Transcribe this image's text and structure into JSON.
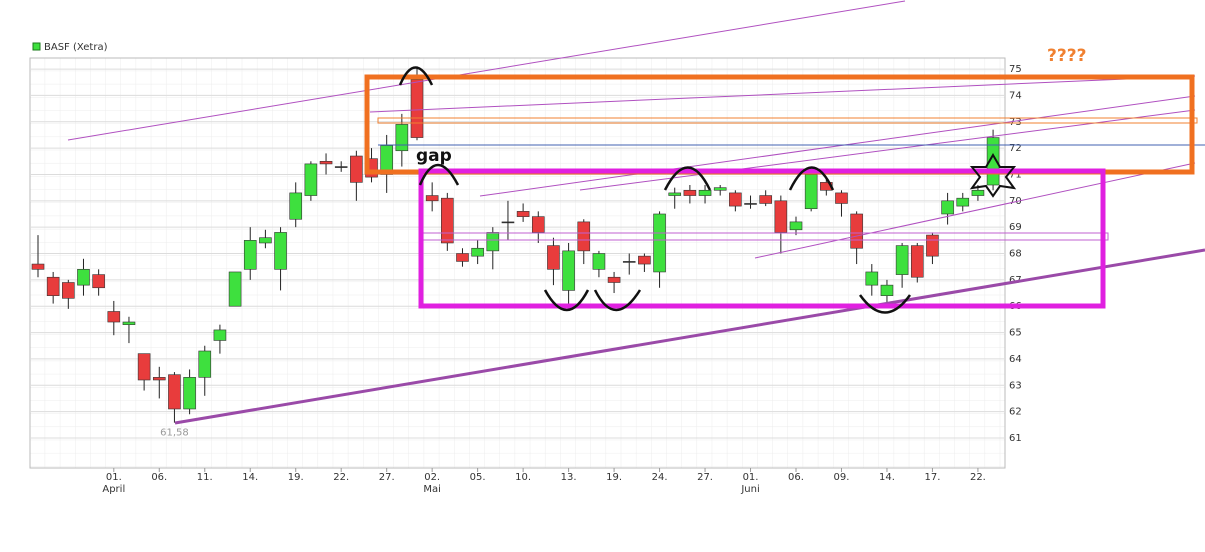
{
  "chart_data": {
    "type": "candlestick",
    "title": "BASF (Xetra)",
    "categories": [
      null,
      null,
      null,
      null,
      null,
      "01.",
      null,
      null,
      "06.",
      null,
      null,
      "11.",
      null,
      null,
      "14.",
      null,
      null,
      "19.",
      null,
      null,
      "22.",
      null,
      null,
      "27.",
      null,
      null,
      "02.",
      null,
      null,
      "05.",
      null,
      null,
      "10.",
      null,
      null,
      "13.",
      null,
      null,
      "19.",
      null,
      null,
      "24.",
      null,
      null,
      "27.",
      null,
      null,
      "01.",
      null,
      null,
      "06.",
      null,
      null,
      "09.",
      null,
      null,
      "14.",
      null,
      null,
      "17.",
      null,
      null,
      "22.",
      null
    ],
    "months": [
      "April",
      "Mai",
      "Juni"
    ],
    "series": [
      {
        "name": "BASF (Xetra)",
        "open": [
          67.6,
          67.1,
          66.9,
          66.8,
          67.2,
          65.8,
          65.3,
          64.2,
          63.3,
          63.4,
          62.1,
          63.3,
          64.7,
          66.0,
          67.4,
          68.4,
          67.4,
          69.3,
          70.2,
          71.5,
          71.3,
          71.7,
          71.6,
          71.0,
          71.9,
          74.6,
          70.2,
          70.1,
          68.0,
          67.9,
          68.1,
          69.2,
          69.6,
          69.4,
          68.3,
          66.6,
          69.2,
          67.4,
          67.1,
          67.7,
          67.9,
          67.3,
          70.2,
          70.4,
          70.2,
          70.4,
          70.3,
          69.9,
          70.2,
          70.0,
          68.9,
          69.7,
          70.7,
          70.3,
          69.5,
          66.8,
          66.4,
          67.2,
          68.3,
          68.7,
          69.5,
          69.8,
          70.2,
          70.6
        ],
        "high": [
          68.7,
          67.3,
          67.0,
          67.8,
          67.4,
          66.2,
          65.6,
          64.2,
          63.7,
          63.5,
          63.6,
          64.5,
          65.3,
          67.3,
          69.0,
          68.9,
          69.0,
          70.7,
          71.5,
          71.8,
          71.5,
          71.9,
          72.0,
          72.5,
          73.3,
          75.1,
          70.7,
          70.3,
          68.2,
          68.5,
          69.0,
          70.0,
          69.9,
          69.6,
          68.6,
          68.4,
          69.3,
          68.1,
          67.3,
          68.0,
          68.0,
          69.6,
          70.5,
          70.6,
          70.6,
          70.6,
          70.4,
          70.2,
          70.4,
          70.2,
          69.4,
          71.1,
          70.9,
          70.4,
          69.6,
          67.6,
          67.0,
          68.4,
          68.4,
          68.8,
          70.3,
          70.3,
          70.6,
          72.7
        ],
        "low": [
          67.1,
          66.1,
          65.9,
          66.4,
          66.4,
          64.9,
          64.6,
          62.8,
          62.5,
          61.58,
          61.9,
          62.6,
          64.2,
          66.0,
          67.0,
          68.2,
          66.6,
          69.0,
          70.0,
          71.0,
          71.1,
          70.0,
          70.7,
          70.3,
          71.3,
          72.3,
          69.6,
          68.1,
          67.5,
          67.6,
          67.4,
          68.5,
          69.2,
          68.4,
          66.8,
          66.0,
          67.6,
          67.1,
          66.5,
          67.2,
          67.3,
          66.7,
          69.7,
          69.9,
          69.9,
          70.2,
          69.6,
          69.7,
          69.8,
          68.0,
          68.7,
          69.6,
          70.2,
          69.4,
          67.6,
          66.4,
          66.1,
          66.7,
          66.9,
          67.6,
          69.1,
          69.6,
          70.0,
          70.4
        ],
        "close": [
          67.4,
          66.4,
          66.3,
          67.4,
          66.7,
          65.4,
          65.4,
          63.2,
          63.2,
          62.1,
          63.3,
          64.3,
          65.1,
          67.3,
          68.5,
          68.6,
          68.8,
          70.3,
          71.4,
          71.4,
          71.3,
          70.7,
          70.9,
          72.1,
          72.9,
          72.4,
          70.0,
          68.4,
          67.7,
          68.2,
          68.8,
          69.2,
          69.4,
          68.8,
          67.4,
          68.1,
          68.1,
          68.0,
          66.9,
          67.7,
          67.6,
          69.5,
          70.3,
          70.2,
          70.4,
          70.5,
          69.8,
          69.9,
          69.9,
          68.8,
          69.2,
          71.0,
          70.4,
          69.9,
          68.2,
          67.3,
          66.8,
          68.3,
          67.1,
          67.9,
          70.0,
          70.1,
          70.4,
          72.4
        ],
        "low_label": "61,58"
      }
    ],
    "up_color": "#3ee03e",
    "down_color": "#e83c3c",
    "ylim": [
      59.86,
      75.42
    ],
    "yticks": [
      61,
      62,
      63,
      64,
      65,
      66,
      67,
      68,
      69,
      70,
      71,
      72,
      73,
      74,
      75
    ],
    "grid": true,
    "annotations": [
      "gap",
      "????"
    ]
  }
}
